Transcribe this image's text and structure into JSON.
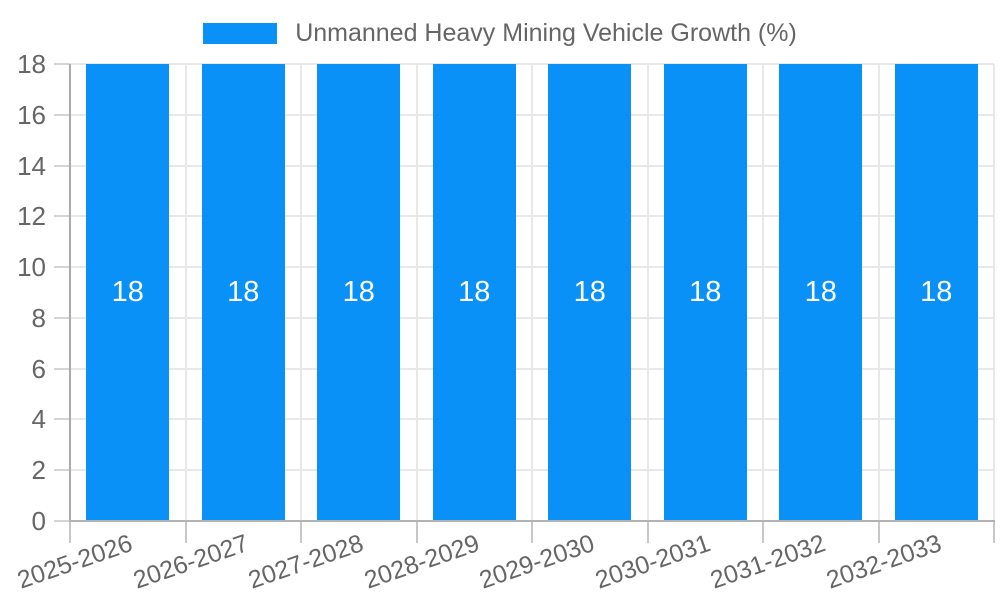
{
  "chart_data": {
    "type": "bar",
    "title": "",
    "xlabel": "",
    "ylabel": "",
    "categories": [
      "2025-2026",
      "2026-2027",
      "2027-2028",
      "2028-2029",
      "2029-2030",
      "2030-2031",
      "2031-2032",
      "2032-2033"
    ],
    "series": [
      {
        "name": "Unmanned Heavy Mining Vehicle Growth (%)",
        "values": [
          18,
          18,
          18,
          18,
          18,
          18,
          18,
          18
        ]
      }
    ],
    "bar_value_labels": [
      "18",
      "18",
      "18",
      "18",
      "18",
      "18",
      "18",
      "18"
    ],
    "ylim": [
      0,
      18
    ],
    "yticks": [
      0,
      2,
      4,
      6,
      8,
      10,
      12,
      14,
      16,
      18
    ],
    "grid": true,
    "legend_position": "top-center",
    "x_label_rotation_deg": -19,
    "colors": {
      "bar": "#0991f8",
      "bar_label": "#ffffff",
      "grid": "#e8e8e8",
      "axis": "#aaaaaa",
      "tick_text": "#666666"
    }
  }
}
